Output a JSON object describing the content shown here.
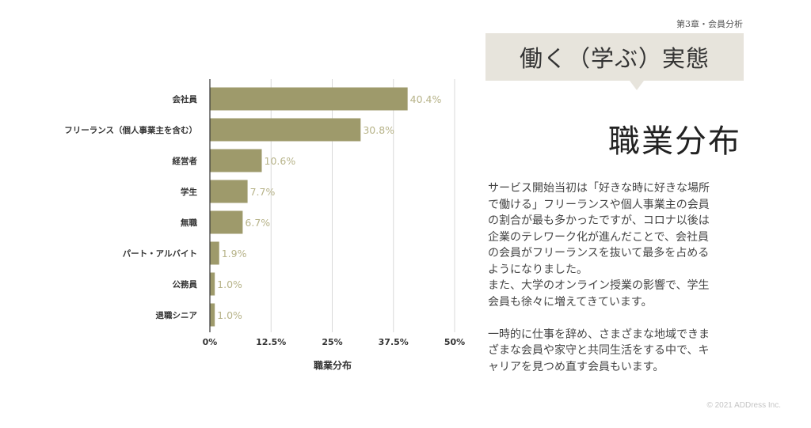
{
  "header": {
    "chapter": "第3章・会員分析",
    "title": "働く（学ぶ）実態",
    "subtitle": "職業分布"
  },
  "description": "サービス開始当初は「好きな時に好きな場所\nで働ける」フリーランスや個人事業主の会員\nの割合が最も多かったですが、コロナ以後は\n企業のテレワーク化が進んだことで、会社員\nの会員がフリーランスを抜いて最多を占める\nようになりました。\nまた、大学のオンライン授業の影響で、学生\n会員も徐々に増えてきています。\n\n一時的に仕事を辞め、さまざまな地域できま\nざまな会員や家守と共同生活をする中で、キ\nャリアを見つめ直す会員もいます。",
  "footer": {
    "copyright": "© 2021 ADDress Inc."
  },
  "colors": {
    "bar": "#9e9a6b",
    "label": "#b7b389",
    "grid": "#d9d9d9",
    "title_box": "#e7e4dc"
  },
  "chart_data": {
    "type": "bar",
    "orientation": "horizontal",
    "categories": [
      "会社員",
      "フリーランス（個人事業主を含む）",
      "経営者",
      "学生",
      "無職",
      "パート・アルバイト",
      "公務員",
      "退職シニア"
    ],
    "values": [
      40.4,
      30.8,
      10.6,
      7.7,
      6.7,
      1.9,
      1.0,
      1.0
    ],
    "value_labels": [
      "40.4%",
      "30.8%",
      "10.6%",
      "7.7%",
      "6.7%",
      "1.9%",
      "1.0%",
      "1.0%"
    ],
    "xlim": [
      0,
      50
    ],
    "xticks": [
      0,
      12.5,
      25,
      37.5,
      50
    ],
    "xtick_labels": [
      "0%",
      "12.5%",
      "25%",
      "37.5%",
      "50%"
    ],
    "xlabel": "職業分布",
    "grid": true,
    "legend": "none"
  }
}
